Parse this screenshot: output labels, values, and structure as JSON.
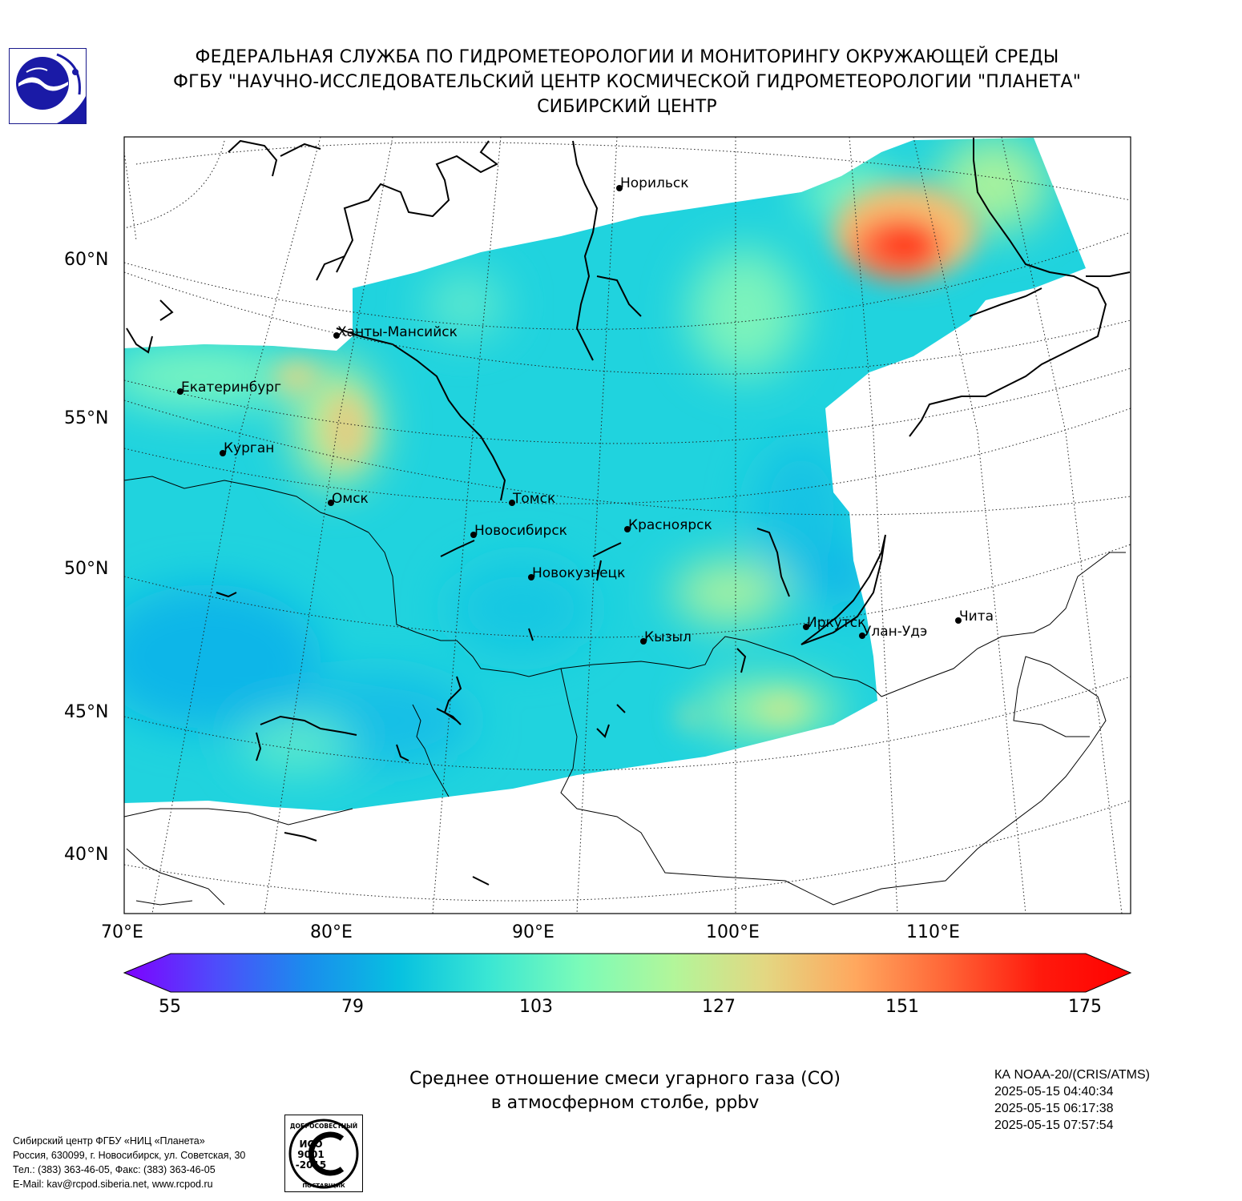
{
  "header": {
    "line1": "ФЕДЕРАЛЬНАЯ СЛУЖБА ПО ГИДРОМЕТЕОРОЛОГИИ И МОНИТОРИНГУ ОКРУЖАЮЩЕЙ СРЕДЫ",
    "line2": "ФГБУ \"НАУЧНО-ИССЛЕДОВАТЕЛЬСКИЙ ЦЕНТР КОСМИЧЕСКОЙ ГИДРОМЕТЕОРОЛОГИИ \"ПЛАНЕТА\"",
    "line3": "СИБИРСКИЙ ЦЕНТР"
  },
  "logo_icon": "planeta-logo-icon",
  "map": {
    "lat_labels": [
      "60°N",
      "55°N",
      "50°N",
      "45°N",
      "40°N"
    ],
    "lon_labels": [
      "70°E",
      "80°E",
      "90°E",
      "100°E",
      "110°E"
    ],
    "cities": [
      {
        "name": "Норильск"
      },
      {
        "name": "Ханты-Мансийск"
      },
      {
        "name": "Екатеринбург"
      },
      {
        "name": "Курган"
      },
      {
        "name": "Омск"
      },
      {
        "name": "Томск"
      },
      {
        "name": "Новосибирск"
      },
      {
        "name": "Красноярск"
      },
      {
        "name": "Новокузнецк"
      },
      {
        "name": "Иркутск"
      },
      {
        "name": "Улан-Удэ"
      },
      {
        "name": "Чита"
      },
      {
        "name": "Кызыл"
      }
    ]
  },
  "colorbar": {
    "min": 55,
    "max": 175,
    "ticks": [
      "55",
      "79",
      "103",
      "127",
      "151",
      "175"
    ],
    "colors": [
      "#7f00ff",
      "#4e4cfb",
      "#1a8ded",
      "#07c1e0",
      "#3be7d3",
      "#7cfbb8",
      "#b2f69a",
      "#e3d782",
      "#ffa75e",
      "#ff6436",
      "#ff1a0d",
      "#ff0000"
    ]
  },
  "caption": {
    "line1": "Среднее отношение смеси угарного газа (CO)",
    "line2": "в атмосферном столбе, ppbv"
  },
  "satellite": {
    "name": "КА NOAA-20/(CRIS/ATMS)",
    "passes": [
      "2025-05-15 04:40:34",
      "2025-05-15 06:17:38",
      "2025-05-15 07:57:54"
    ]
  },
  "organization": {
    "line1": "Сибирский центр ФГБУ «НИЦ «Планета»",
    "line2": "Россия, 630099, г. Новосибирск, ул. Советская, 30",
    "line3": "Тел.: (383) 363-46-05, Факс: (383) 363-46-05",
    "line4": "E-Mail: kav@rcpod.siberia.net, www.rcpod.ru"
  },
  "iso_stamp": {
    "top_text": "ДОБРОСОВЕСТНЫЙ",
    "line1": "ИСО",
    "line2": "9001",
    "line3": "-2015",
    "bottom_text": "ПОСТАВЩИК"
  }
}
